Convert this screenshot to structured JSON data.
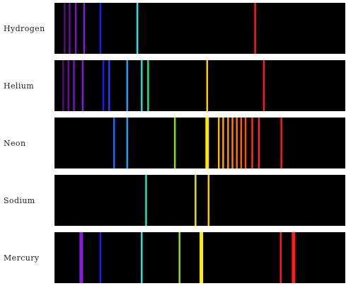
{
  "spectra": [
    {
      "element": "Hydrogen",
      "lines": [
        {
          "pos": 0.035,
          "color": "#5b0a78",
          "weight": 1
        },
        {
          "pos": 0.052,
          "color": "#6a0aa0",
          "weight": 1
        },
        {
          "pos": 0.073,
          "color": "#7a12c4",
          "weight": 1
        },
        {
          "pos": 0.102,
          "color": "#8a18e0",
          "weight": 1
        },
        {
          "pos": 0.158,
          "color": "#1a1aff",
          "weight": 1
        },
        {
          "pos": 0.285,
          "color": "#19e6e6",
          "weight": 1
        },
        {
          "pos": 0.69,
          "color": "#ff1a1a",
          "weight": 1
        }
      ]
    },
    {
      "element": "Helium",
      "lines": [
        {
          "pos": 0.03,
          "color": "#5b0a78",
          "weight": 1
        },
        {
          "pos": 0.048,
          "color": "#6a0aa0",
          "weight": 1
        },
        {
          "pos": 0.067,
          "color": "#7a12c4",
          "weight": 1
        },
        {
          "pos": 0.097,
          "color": "#8a18e0",
          "weight": 1
        },
        {
          "pos": 0.168,
          "color": "#1a1aff",
          "weight": 1
        },
        {
          "pos": 0.188,
          "color": "#1f3dff",
          "weight": 1
        },
        {
          "pos": 0.25,
          "color": "#1a9cff",
          "weight": 1
        },
        {
          "pos": 0.3,
          "color": "#18e0d0",
          "weight": 1
        },
        {
          "pos": 0.322,
          "color": "#20e080",
          "weight": 1
        },
        {
          "pos": 0.525,
          "color": "#ffcc00",
          "weight": 1
        },
        {
          "pos": 0.72,
          "color": "#ff1a1a",
          "weight": 1
        }
      ]
    },
    {
      "element": "Neon",
      "lines": [
        {
          "pos": 0.205,
          "color": "#1a66ff",
          "weight": 1
        },
        {
          "pos": 0.25,
          "color": "#1a9cff",
          "weight": 1
        },
        {
          "pos": 0.414,
          "color": "#88e01a",
          "weight": 1
        },
        {
          "pos": 0.525,
          "color": "#ffe600",
          "weight": 2
        },
        {
          "pos": 0.565,
          "color": "#ffb000",
          "weight": 1
        },
        {
          "pos": 0.58,
          "color": "#ffa000",
          "weight": 1
        },
        {
          "pos": 0.597,
          "color": "#ff9000",
          "weight": 1
        },
        {
          "pos": 0.612,
          "color": "#ff8000",
          "weight": 1
        },
        {
          "pos": 0.627,
          "color": "#ff7000",
          "weight": 1
        },
        {
          "pos": 0.642,
          "color": "#ff6000",
          "weight": 1
        },
        {
          "pos": 0.657,
          "color": "#ff5000",
          "weight": 1
        },
        {
          "pos": 0.68,
          "color": "#ff3300",
          "weight": 1
        },
        {
          "pos": 0.703,
          "color": "#ff2a1a",
          "weight": 1
        },
        {
          "pos": 0.78,
          "color": "#ff1a1a",
          "weight": 1
        }
      ]
    },
    {
      "element": "Sodium",
      "lines": [
        {
          "pos": 0.315,
          "color": "#19e6b0",
          "weight": 1
        },
        {
          "pos": 0.485,
          "color": "#dde019",
          "weight": 1
        },
        {
          "pos": 0.53,
          "color": "#ffd000",
          "weight": 1
        }
      ]
    },
    {
      "element": "Mercury",
      "lines": [
        {
          "pos": 0.092,
          "color": "#8a18e0",
          "weight": 2
        },
        {
          "pos": 0.158,
          "color": "#1a1aff",
          "weight": 1
        },
        {
          "pos": 0.3,
          "color": "#19e6e6",
          "weight": 1
        },
        {
          "pos": 0.43,
          "color": "#88e01a",
          "weight": 1
        },
        {
          "pos": 0.505,
          "color": "#ffee00",
          "weight": 2
        },
        {
          "pos": 0.778,
          "color": "#ff1a1a",
          "weight": 1
        },
        {
          "pos": 0.822,
          "color": "#ff1a1a",
          "weight": 2
        }
      ]
    }
  ]
}
